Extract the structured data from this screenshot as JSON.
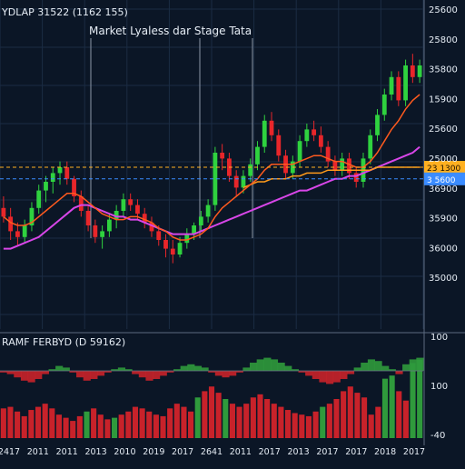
{
  "header": {
    "ticker_label": "YDLAP 31522 (1162 155)",
    "annotation": "Market Lyaless dar Stage Tata"
  },
  "colors": {
    "background": "#0b1626",
    "grid": "#1b2c44",
    "up_candle": "#2fd23f",
    "down_candle": "#e8262a",
    "ma_fast": "#ff5a1e",
    "ma_medium": "#ff9a1a",
    "ma_slow": "#d846e8",
    "price_line": "#ffb020",
    "price_line_blue": "#3b8cff",
    "osc_positive": "#2f9a3c",
    "osc_negative": "#c8222a",
    "axis_text": "#e6edf5"
  },
  "chart_data": [
    {
      "type": "candlestick",
      "title": "Market Lyaless dar Stage Tata",
      "subtitle": "YDLAP 31522 (1162 155)",
      "y_axis_labels": [
        "25600",
        "25800",
        "35800",
        "15900",
        "25600",
        "25000",
        "36900",
        "35900",
        "36000",
        "35000"
      ],
      "price_tags": [
        "23 1300",
        "3 5600"
      ],
      "ylim": [
        0,
        100
      ],
      "candles": [
        {
          "o": 41,
          "h": 45,
          "l": 36,
          "c": 38
        },
        {
          "o": 38,
          "h": 41,
          "l": 30,
          "c": 33
        },
        {
          "o": 33,
          "h": 36,
          "l": 28,
          "c": 31
        },
        {
          "o": 31,
          "h": 37,
          "l": 29,
          "c": 35
        },
        {
          "o": 35,
          "h": 43,
          "l": 33,
          "c": 41
        },
        {
          "o": 41,
          "h": 49,
          "l": 39,
          "c": 47
        },
        {
          "o": 47,
          "h": 52,
          "l": 43,
          "c": 50
        },
        {
          "o": 50,
          "h": 55,
          "l": 46,
          "c": 53
        },
        {
          "o": 53,
          "h": 57,
          "l": 49,
          "c": 55
        },
        {
          "o": 55,
          "h": 57,
          "l": 49,
          "c": 51
        },
        {
          "o": 51,
          "h": 52,
          "l": 43,
          "c": 45
        },
        {
          "o": 45,
          "h": 47,
          "l": 38,
          "c": 40
        },
        {
          "o": 40,
          "h": 42,
          "l": 33,
          "c": 35
        },
        {
          "o": 35,
          "h": 37,
          "l": 29,
          "c": 31
        },
        {
          "o": 31,
          "h": 35,
          "l": 27,
          "c": 33
        },
        {
          "o": 33,
          "h": 39,
          "l": 31,
          "c": 37
        },
        {
          "o": 37,
          "h": 42,
          "l": 34,
          "c": 40
        },
        {
          "o": 40,
          "h": 46,
          "l": 38,
          "c": 44
        },
        {
          "o": 44,
          "h": 46,
          "l": 40,
          "c": 42
        },
        {
          "o": 42,
          "h": 44,
          "l": 37,
          "c": 39
        },
        {
          "o": 39,
          "h": 41,
          "l": 34,
          "c": 36
        },
        {
          "o": 36,
          "h": 38,
          "l": 31,
          "c": 33
        },
        {
          "o": 33,
          "h": 35,
          "l": 28,
          "c": 30
        },
        {
          "o": 30,
          "h": 32,
          "l": 24,
          "c": 27
        },
        {
          "o": 27,
          "h": 30,
          "l": 22,
          "c": 25
        },
        {
          "o": 25,
          "h": 31,
          "l": 24,
          "c": 29
        },
        {
          "o": 29,
          "h": 34,
          "l": 27,
          "c": 32
        },
        {
          "o": 32,
          "h": 36,
          "l": 30,
          "c": 35
        },
        {
          "o": 35,
          "h": 40,
          "l": 33,
          "c": 38
        },
        {
          "o": 38,
          "h": 44,
          "l": 36,
          "c": 42
        },
        {
          "o": 42,
          "h": 62,
          "l": 40,
          "c": 60
        },
        {
          "o": 60,
          "h": 63,
          "l": 54,
          "c": 58
        },
        {
          "o": 58,
          "h": 60,
          "l": 50,
          "c": 52
        },
        {
          "o": 52,
          "h": 54,
          "l": 45,
          "c": 48
        },
        {
          "o": 48,
          "h": 54,
          "l": 46,
          "c": 52
        },
        {
          "o": 52,
          "h": 58,
          "l": 50,
          "c": 56
        },
        {
          "o": 56,
          "h": 64,
          "l": 54,
          "c": 62
        },
        {
          "o": 62,
          "h": 73,
          "l": 60,
          "c": 71
        },
        {
          "o": 71,
          "h": 74,
          "l": 64,
          "c": 66
        },
        {
          "o": 66,
          "h": 68,
          "l": 57,
          "c": 59
        },
        {
          "o": 59,
          "h": 61,
          "l": 51,
          "c": 53
        },
        {
          "o": 53,
          "h": 59,
          "l": 51,
          "c": 57
        },
        {
          "o": 57,
          "h": 66,
          "l": 55,
          "c": 64
        },
        {
          "o": 64,
          "h": 70,
          "l": 62,
          "c": 68
        },
        {
          "o": 68,
          "h": 71,
          "l": 64,
          "c": 66
        },
        {
          "o": 66,
          "h": 69,
          "l": 60,
          "c": 62
        },
        {
          "o": 62,
          "h": 64,
          "l": 55,
          "c": 57
        },
        {
          "o": 57,
          "h": 59,
          "l": 52,
          "c": 54
        },
        {
          "o": 54,
          "h": 60,
          "l": 52,
          "c": 58
        },
        {
          "o": 58,
          "h": 60,
          "l": 51,
          "c": 53
        },
        {
          "o": 53,
          "h": 55,
          "l": 48,
          "c": 50
        },
        {
          "o": 50,
          "h": 60,
          "l": 48,
          "c": 58
        },
        {
          "o": 58,
          "h": 68,
          "l": 56,
          "c": 66
        },
        {
          "o": 66,
          "h": 75,
          "l": 64,
          "c": 73
        },
        {
          "o": 73,
          "h": 82,
          "l": 71,
          "c": 80
        },
        {
          "o": 80,
          "h": 88,
          "l": 78,
          "c": 86
        },
        {
          "o": 86,
          "h": 88,
          "l": 76,
          "c": 78
        },
        {
          "o": 78,
          "h": 92,
          "l": 76,
          "c": 90
        },
        {
          "o": 90,
          "h": 94,
          "l": 84,
          "c": 86
        },
        {
          "o": 86,
          "h": 92,
          "l": 84,
          "c": 90
        }
      ],
      "ma_fast": [
        38,
        36,
        35,
        35,
        36,
        38,
        40,
        42,
        44,
        46,
        46,
        45,
        43,
        41,
        39,
        38,
        37,
        37,
        38,
        38,
        37,
        36,
        34,
        33,
        31,
        30,
        30,
        31,
        32,
        34,
        38,
        41,
        43,
        45,
        47,
        49,
        51,
        54,
        56,
        56,
        56,
        56,
        57,
        58,
        59,
        59,
        58,
        57,
        57,
        56,
        55,
        55,
        57,
        60,
        64,
        68,
        71,
        75,
        78,
        80
      ],
      "ma_medium": [
        null,
        null,
        null,
        null,
        null,
        null,
        null,
        null,
        null,
        null,
        null,
        null,
        null,
        null,
        null,
        null,
        null,
        null,
        null,
        null,
        null,
        null,
        null,
        null,
        null,
        null,
        null,
        null,
        null,
        null,
        null,
        null,
        null,
        null,
        48,
        49,
        50,
        50,
        51,
        51,
        51,
        52,
        52,
        53,
        53,
        53,
        54,
        54,
        54,
        54,
        54,
        54,
        54,
        55,
        55,
        55,
        55,
        55,
        55,
        55
      ],
      "ma_slow": [
        27,
        27,
        28,
        29,
        30,
        31,
        33,
        35,
        37,
        39,
        41,
        42,
        42,
        41,
        40,
        39,
        38,
        38,
        37,
        37,
        36,
        35,
        34,
        33,
        32,
        32,
        32,
        32,
        33,
        34,
        35,
        36,
        37,
        38,
        39,
        40,
        41,
        42,
        43,
        44,
        45,
        46,
        47,
        47,
        48,
        49,
        50,
        51,
        51,
        52,
        52,
        53,
        54,
        55,
        56,
        57,
        58,
        59,
        60,
        62
      ],
      "price_levels": [
        55,
        51
      ]
    },
    {
      "type": "bar",
      "title": "RAMF FERBYD (D 59162)",
      "y_axis_labels": [
        "100",
        "100",
        "-40"
      ],
      "x_tick_labels": [
        "2417",
        "2011",
        "2011",
        "2013",
        "2010",
        "2019",
        "2017",
        "2641",
        "2011",
        "2017",
        "2013",
        "2017",
        "2017",
        "2018",
        "2017"
      ],
      "values": [
        38,
        40,
        34,
        28,
        36,
        40,
        44,
        38,
        30,
        26,
        22,
        28,
        34,
        38,
        30,
        24,
        26,
        30,
        34,
        40,
        38,
        34,
        30,
        28,
        38,
        44,
        40,
        34,
        52,
        60,
        66,
        58,
        50,
        44,
        40,
        44,
        52,
        56,
        50,
        44,
        40,
        36,
        32,
        30,
        28,
        34,
        40,
        44,
        50,
        60,
        66,
        58,
        52,
        30,
        40,
        76,
        80,
        60,
        48,
        96,
        100
      ],
      "positive_mask": [
        0,
        0,
        0,
        0,
        0,
        0,
        0,
        0,
        0,
        0,
        0,
        0,
        1,
        0,
        0,
        0,
        1,
        0,
        0,
        0,
        0,
        0,
        0,
        0,
        0,
        0,
        0,
        0,
        1,
        0,
        0,
        0,
        1,
        0,
        0,
        0,
        0,
        0,
        0,
        0,
        0,
        0,
        0,
        0,
        0,
        0,
        1,
        0,
        0,
        0,
        0,
        0,
        0,
        0,
        0,
        1,
        1,
        0,
        0,
        1,
        1
      ],
      "wave": [
        -2,
        -4,
        -8,
        -12,
        -14,
        -10,
        -4,
        2,
        6,
        4,
        -2,
        -8,
        -12,
        -10,
        -6,
        -2,
        2,
        4,
        2,
        -4,
        -8,
        -12,
        -10,
        -6,
        -2,
        2,
        6,
        8,
        6,
        4,
        -2,
        -6,
        -8,
        -6,
        -2,
        4,
        10,
        14,
        16,
        14,
        10,
        6,
        2,
        -2,
        -6,
        -10,
        -14,
        -16,
        -14,
        -10,
        -4,
        4,
        10,
        14,
        12,
        6,
        2,
        -4,
        8,
        14,
        16
      ]
    }
  ]
}
